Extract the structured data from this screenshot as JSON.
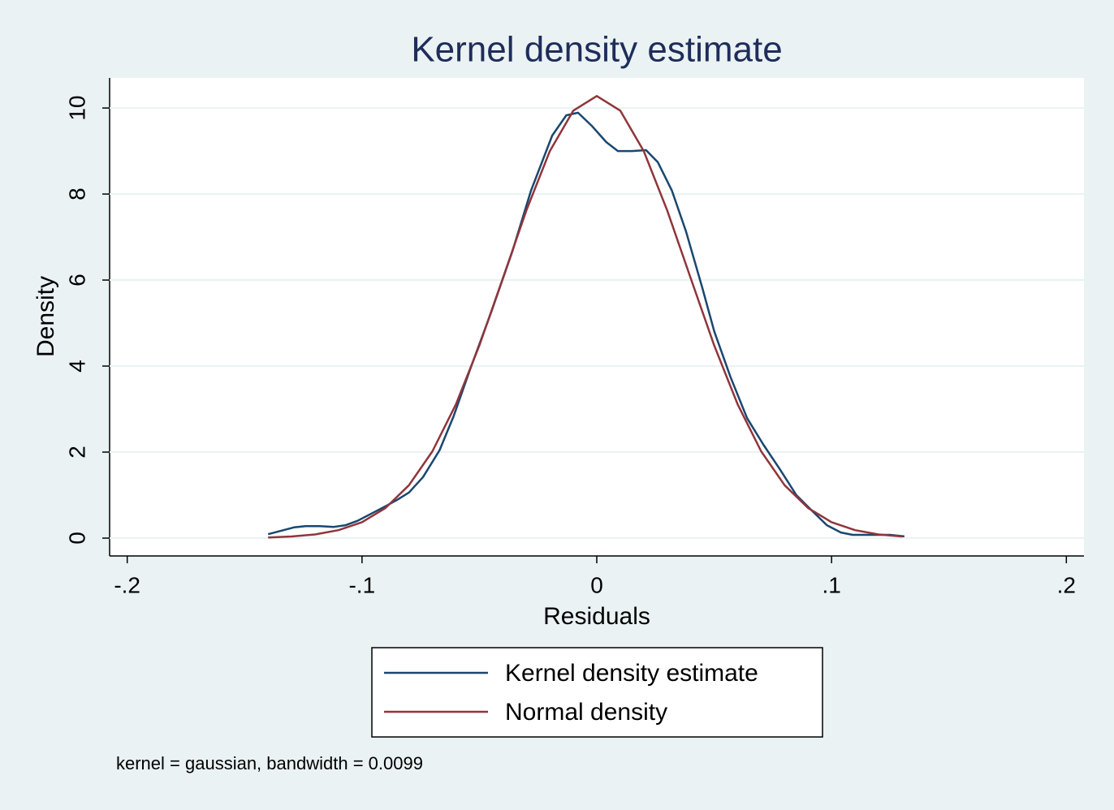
{
  "chart_data": {
    "type": "line",
    "title": "Kernel density estimate",
    "x_label": "Residuals",
    "y_label": "Density",
    "note": "kernel = gaussian, bandwidth = 0.0099",
    "xlim": [
      -0.2075,
      0.2075
    ],
    "ylim": [
      -0.415,
      10.7
    ],
    "xticks": [
      {
        "value": -0.2,
        "label": "-.2"
      },
      {
        "value": -0.1,
        "label": "-.1"
      },
      0,
      {
        "value": 0.1,
        "label": ".1"
      },
      {
        "value": 0.2,
        "label": ".2"
      }
    ],
    "yticks": [
      0,
      2,
      4,
      6,
      8,
      10
    ],
    "grid": true,
    "legend": "bottom",
    "series": [
      {
        "name": "Kernel density estimate",
        "color": "#1a476f",
        "x": [
          -0.14,
          -0.129,
          -0.124,
          -0.118,
          -0.112,
          -0.107,
          -0.102,
          -0.096,
          -0.089,
          -0.085,
          -0.08,
          -0.074,
          -0.067,
          -0.061,
          -0.054,
          -0.045,
          -0.036,
          -0.028,
          -0.019,
          -0.013,
          -0.008,
          -0.002,
          0.004,
          0.009,
          0.015,
          0.021,
          0.026,
          0.032,
          0.038,
          0.045,
          0.05,
          0.057,
          0.064,
          0.071,
          0.078,
          0.085,
          0.092,
          0.098,
          0.104,
          0.109,
          0.118,
          0.125,
          0.131
        ],
        "values": [
          0.09,
          0.25,
          0.28,
          0.28,
          0.26,
          0.3,
          0.4,
          0.57,
          0.77,
          0.89,
          1.06,
          1.42,
          2.04,
          2.83,
          3.92,
          5.25,
          6.66,
          8.08,
          9.36,
          9.83,
          9.89,
          9.58,
          9.21,
          9.0,
          9.0,
          9.02,
          8.74,
          8.08,
          7.13,
          5.81,
          4.81,
          3.74,
          2.79,
          2.17,
          1.6,
          1.0,
          0.62,
          0.3,
          0.13,
          0.075,
          0.075,
          0.075,
          0.04
        ]
      },
      {
        "name": "Normal density",
        "color": "#90353b",
        "x": [
          -0.14,
          -0.13,
          -0.12,
          -0.11,
          -0.1,
          -0.09,
          -0.08,
          -0.07,
          -0.06,
          -0.05,
          -0.04,
          -0.03,
          -0.02,
          -0.01,
          0,
          0.01,
          0.02,
          0.03,
          0.04,
          0.05,
          0.06,
          0.07,
          0.08,
          0.09,
          0.1,
          0.11,
          0.12,
          0.13
        ],
        "values": [
          0.015,
          0.038,
          0.086,
          0.185,
          0.37,
          0.7,
          1.23,
          2.02,
          3.11,
          4.48,
          6.04,
          7.62,
          9.0,
          9.94,
          10.28,
          9.94,
          9.0,
          7.62,
          6.04,
          4.48,
          3.11,
          2.02,
          1.23,
          0.7,
          0.37,
          0.185,
          0.086,
          0.038
        ]
      }
    ]
  }
}
